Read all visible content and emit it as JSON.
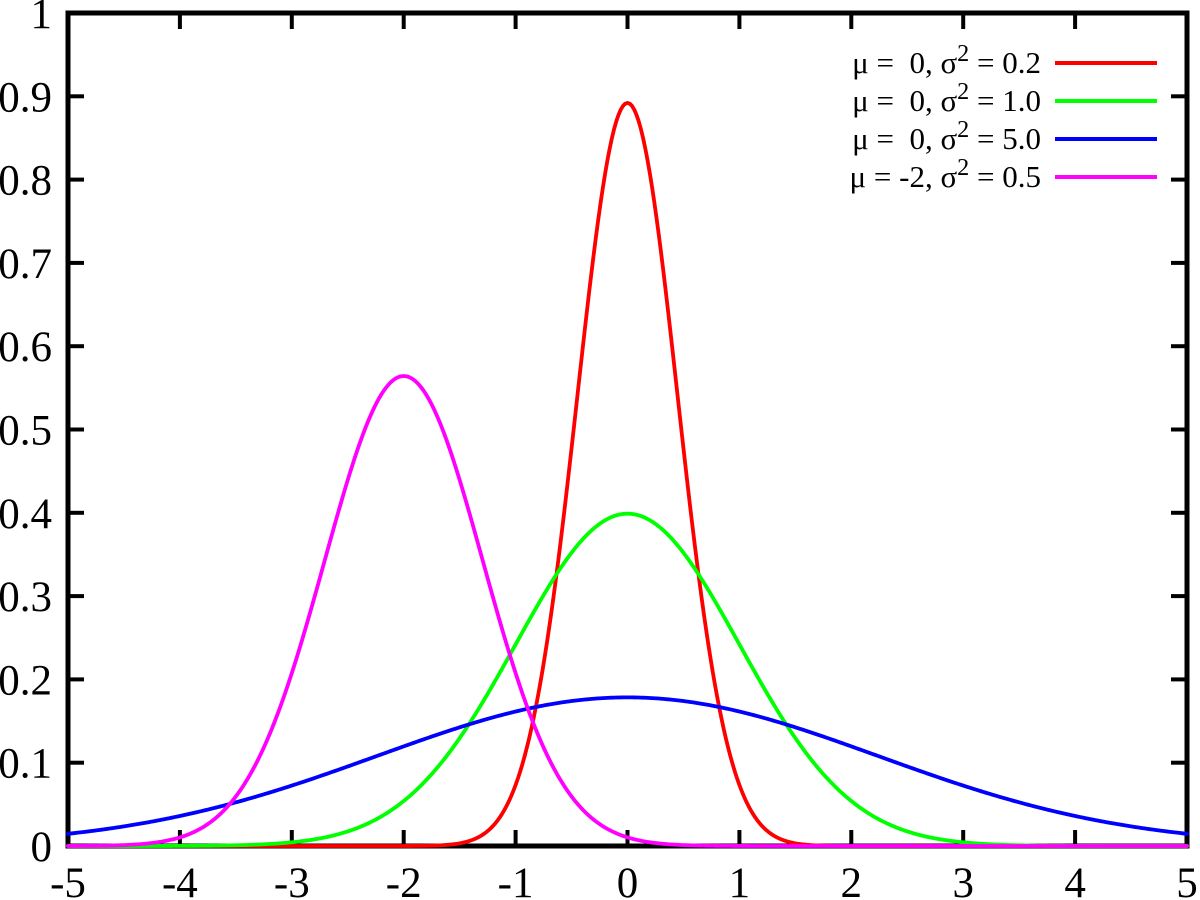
{
  "figure": {
    "background": "#ffffff",
    "axis_color": "#000000"
  },
  "chart_data": {
    "type": "line",
    "title": "",
    "xlabel": "",
    "ylabel": "",
    "xlim": [
      -5,
      5
    ],
    "ylim": [
      0,
      1
    ],
    "grid": false,
    "legend_position": "top-right",
    "x_ticks": [
      -5,
      -4,
      -3,
      -2,
      -1,
      0,
      1,
      2,
      3,
      4,
      5
    ],
    "x_tick_labels": [
      "-5",
      "-4",
      "-3",
      "-2",
      "-1",
      "0",
      "1",
      "2",
      "3",
      "4",
      "5"
    ],
    "y_ticks": [
      0,
      0.1,
      0.2,
      0.3,
      0.4,
      0.5,
      0.6,
      0.7,
      0.8,
      0.9,
      1
    ],
    "y_tick_labels": [
      "0",
      "0.1",
      "0.2",
      "0.3",
      "0.4",
      "0.5",
      "0.6",
      "0.7",
      "0.8",
      "0.9",
      "1"
    ],
    "curve_formula": "y = exp(-(x-mu)^2 / (2*sigma2)) / sqrt(2*PI*sigma2)",
    "series": [
      {
        "label": "μ =  0, σ² = 0.2",
        "label_pre": "μ =  0, σ",
        "label_sup": "2",
        "label_post": " = 0.2",
        "mu": 0,
        "sigma2": 0.2,
        "color": "#ff0000",
        "peak": {
          "x": 0,
          "y": 0.892
        }
      },
      {
        "label": "μ =  0, σ² = 1.0",
        "label_pre": "μ =  0, σ",
        "label_sup": "2",
        "label_post": " = 1.0",
        "mu": 0,
        "sigma2": 1.0,
        "color": "#00ff00",
        "peak": {
          "x": 0,
          "y": 0.399
        }
      },
      {
        "label": "μ =  0, σ² = 5.0",
        "label_pre": "μ =  0, σ",
        "label_sup": "2",
        "label_post": " = 5.0",
        "mu": 0,
        "sigma2": 5.0,
        "color": "#0000ff",
        "peak": {
          "x": 0,
          "y": 0.178
        }
      },
      {
        "label": "μ = -2, σ² = 0.5",
        "label_pre": "μ = -2, σ",
        "label_sup": "2",
        "label_post": " = 0.5",
        "mu": -2,
        "sigma2": 0.5,
        "color": "#ff00ff",
        "peak": {
          "x": -2,
          "y": 0.564
        }
      }
    ]
  }
}
